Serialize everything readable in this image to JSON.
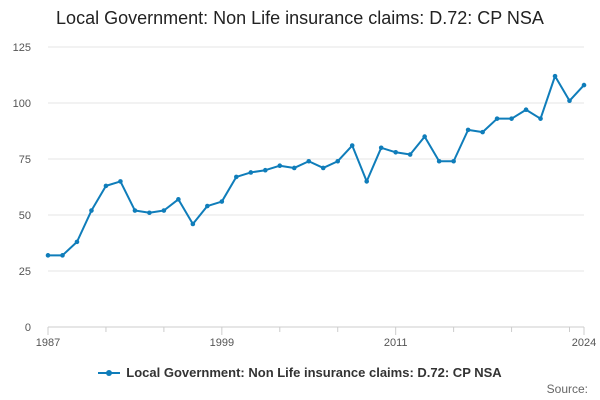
{
  "chart_data": {
    "type": "line",
    "title": "Local Government: Non Life insurance claims: D.72: CP NSA",
    "xlabel": "",
    "ylabel": "",
    "x": [
      1987,
      1988,
      1989,
      1990,
      1991,
      1992,
      1993,
      1994,
      1995,
      1996,
      1997,
      1998,
      1999,
      2000,
      2001,
      2002,
      2003,
      2004,
      2005,
      2006,
      2007,
      2008,
      2009,
      2010,
      2011,
      2012,
      2013,
      2014,
      2015,
      2016,
      2017,
      2018,
      2019,
      2020,
      2021,
      2022,
      2023,
      2024
    ],
    "series": [
      {
        "name": "Local Government: Non Life insurance claims: D.72: CP NSA",
        "values": [
          32,
          32,
          38,
          52,
          63,
          65,
          52,
          51,
          52,
          57,
          46,
          54,
          56,
          67,
          69,
          70,
          72,
          71,
          74,
          71,
          74,
          81,
          65,
          80,
          78,
          77,
          85,
          74,
          74,
          88,
          87,
          93,
          93,
          97,
          93,
          112,
          101,
          108
        ]
      }
    ],
    "xlim": [
      1987,
      2024
    ],
    "ylim": [
      0,
      125
    ],
    "y_ticks": [
      0,
      25,
      50,
      75,
      100,
      125
    ],
    "x_tick_labels": [
      1987,
      1999,
      2011,
      2024
    ],
    "grid": true,
    "legend_position": "bottom",
    "colors": {
      "series": "#0F7DBA",
      "grid": "#E6E6E6",
      "axis": "#CCCCCC"
    },
    "source_label": "Source:"
  }
}
